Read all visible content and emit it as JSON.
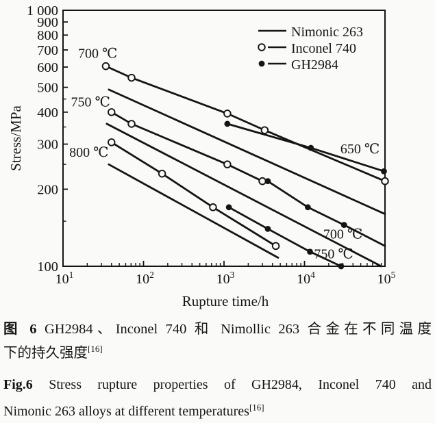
{
  "colors": {
    "ink": "#151515",
    "paper": "#fafaf8"
  },
  "caption": {
    "ref": "[16]",
    "zh": {
      "prefix": "图 6",
      "line1": "GH2984、Inconel 740 和 Nimollic 263 合金在不同温度",
      "line2": "下的持久强度"
    },
    "en": {
      "prefix": "Fig.6",
      "line1": "Stress rupture properties of GH2984, Inconel 740 and",
      "line2": "Nimonic 263 alloys at different temperatures"
    }
  },
  "chart_data": {
    "type": "line",
    "title": "",
    "xlabel": "Rupture time/h",
    "ylabel": "Stress/MPa",
    "x_scale": "log",
    "y_scale": "log",
    "xlim": [
      10,
      100000
    ],
    "ylim": [
      100,
      1000
    ],
    "grid": false,
    "legend_position": "top-right",
    "x_ticks": [
      {
        "value": 10,
        "base": "10",
        "exp": "1"
      },
      {
        "value": 100,
        "base": "10",
        "exp": "2"
      },
      {
        "value": 1000,
        "base": "10",
        "exp": "3"
      },
      {
        "value": 10000,
        "base": "10",
        "exp": "4"
      },
      {
        "value": 100000,
        "base": "10",
        "exp": "5"
      }
    ],
    "y_ticks": [
      {
        "value": 1000,
        "label": "1 000"
      },
      {
        "value": 900,
        "label": "900"
      },
      {
        "value": 800,
        "label": "800"
      },
      {
        "value": 700,
        "label": "700"
      },
      {
        "value": 600,
        "label": "600"
      },
      {
        "value": 500,
        "label": "500"
      },
      {
        "value": 400,
        "label": "400"
      },
      {
        "value": 300,
        "label": "300"
      },
      {
        "value": 200,
        "label": "200"
      },
      {
        "value": 100,
        "label": "100"
      }
    ],
    "y_minor_ticks": [
      150,
      250,
      350,
      450
    ],
    "legend": [
      {
        "label": "Nimonic 263",
        "marker": "none"
      },
      {
        "label": "Inconel 740",
        "marker": "open"
      },
      {
        "label": "GH2984",
        "marker": "filled"
      }
    ],
    "series": [
      {
        "name": "Nimonic 263",
        "temperature": "700 ℃",
        "marker": "none",
        "points": [
          [
            37,
            490
          ],
          [
            100000,
            160
          ]
        ],
        "markers": []
      },
      {
        "name": "Nimonic 263",
        "temperature": "750 ℃",
        "marker": "none",
        "points": [
          [
            35,
            360
          ],
          [
            90000,
            100
          ]
        ],
        "markers": []
      },
      {
        "name": "Nimonic 263",
        "temperature": "800 ℃",
        "marker": "none",
        "points": [
          [
            37,
            250
          ],
          [
            4700,
            108
          ]
        ],
        "markers": []
      },
      {
        "name": "Inconel 740",
        "temperature": "700 ℃",
        "marker": "open",
        "points": [
          [
            34,
            605
          ],
          [
            71,
            545
          ],
          [
            1100,
            395
          ],
          [
            3200,
            340
          ],
          [
            100000,
            215
          ]
        ],
        "markers": [
          [
            34,
            605
          ],
          [
            71,
            545
          ],
          [
            1100,
            395
          ],
          [
            3200,
            340
          ],
          [
            100000,
            215
          ]
        ]
      },
      {
        "name": "Inconel 740",
        "temperature": "750 ℃",
        "marker": "open",
        "points": [
          [
            40,
            400
          ],
          [
            71,
            360
          ],
          [
            1100,
            250
          ],
          [
            3000,
            215
          ]
        ],
        "markers": [
          [
            40,
            400
          ],
          [
            71,
            360
          ],
          [
            1100,
            250
          ],
          [
            3000,
            215
          ]
        ]
      },
      {
        "name": "Inconel 740",
        "temperature": "800 ℃",
        "marker": "open",
        "points": [
          [
            40,
            305
          ],
          [
            170,
            230
          ],
          [
            730,
            170
          ],
          [
            4400,
            120
          ]
        ],
        "markers": [
          [
            40,
            305
          ],
          [
            170,
            230
          ],
          [
            730,
            170
          ],
          [
            4400,
            120
          ]
        ]
      },
      {
        "name": "GH2984",
        "temperature": "650 ℃",
        "marker": "filled",
        "points": [
          [
            1100,
            360
          ],
          [
            12000,
            290
          ],
          [
            97000,
            235
          ]
        ],
        "markers": [
          [
            1100,
            360
          ],
          [
            12000,
            290
          ],
          [
            97000,
            235
          ]
        ]
      },
      {
        "name": "GH2984",
        "temperature": "700 ℃",
        "marker": "filled",
        "points": [
          [
            3500,
            215
          ],
          [
            11000,
            170
          ],
          [
            31000,
            145
          ],
          [
            100000,
            120
          ]
        ],
        "markers": [
          [
            3500,
            215
          ],
          [
            11000,
            170
          ],
          [
            31000,
            145
          ]
        ]
      },
      {
        "name": "GH2984",
        "temperature": "750 ℃",
        "marker": "filled",
        "points": [
          [
            1150,
            170
          ],
          [
            3500,
            140
          ],
          [
            11700,
            114
          ],
          [
            28500,
            100
          ]
        ],
        "markers": [
          [
            1150,
            170
          ],
          [
            3500,
            140
          ],
          [
            11700,
            114
          ],
          [
            28500,
            100
          ]
        ]
      }
    ],
    "annotations": [
      {
        "text": "700 ℃",
        "t": 27,
        "stress": 680
      },
      {
        "text": "750 ℃",
        "t": 22,
        "stress": 440
      },
      {
        "text": "800 ℃",
        "t": 21,
        "stress": 280
      },
      {
        "text": "650 ℃",
        "t": 49000,
        "stress": 288
      },
      {
        "text": "700 ℃",
        "t": 30000,
        "stress": 134
      },
      {
        "text": "750 ℃",
        "t": 23000,
        "stress": 112
      }
    ]
  }
}
